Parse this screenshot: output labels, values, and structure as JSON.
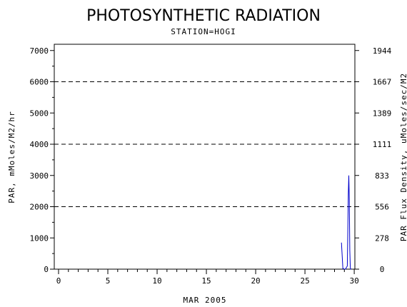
{
  "chart_data": {
    "type": "line",
    "title": "PHOTOSYNTHETIC RADIATION",
    "subtitle": "STATION=HOGI",
    "xlabel": "MAR 2005",
    "ylabel": "PAR, mMoles/M2/hr",
    "y2label": "PAR Flux Density, uMoles/sec/M2",
    "xlim": [
      0,
      30.5
    ],
    "ylim": [
      0,
      7200
    ],
    "xticks": [
      0,
      5,
      10,
      15,
      20,
      25,
      30
    ],
    "xticks_labels": [
      "0",
      "5",
      "10",
      "15",
      "20",
      "25",
      "30"
    ],
    "yticks": [
      0,
      1000,
      2000,
      3000,
      4000,
      5000,
      6000,
      7000
    ],
    "yticks_labels": [
      "0",
      "1000",
      "2000",
      "3000",
      "4000",
      "5000",
      "6000",
      "7000"
    ],
    "y2ticks_labels": [
      "0",
      "278",
      "556",
      "833",
      "1111",
      "1389",
      "1667",
      "1944"
    ],
    "gridlines_y": [
      2000,
      4000,
      6000
    ],
    "grid": "dashed horizontal",
    "series": [
      {
        "color": "#0000cc",
        "x": [
          28.7,
          28.85,
          29.0,
          29.1,
          29.2,
          29.3,
          29.35,
          29.4,
          29.45,
          29.5,
          29.55,
          29.6,
          29.65,
          29.7
        ],
        "values": [
          850,
          20,
          0,
          0,
          50,
          100,
          1200,
          2400,
          3000,
          2200,
          600,
          50,
          0,
          0
        ]
      }
    ]
  }
}
